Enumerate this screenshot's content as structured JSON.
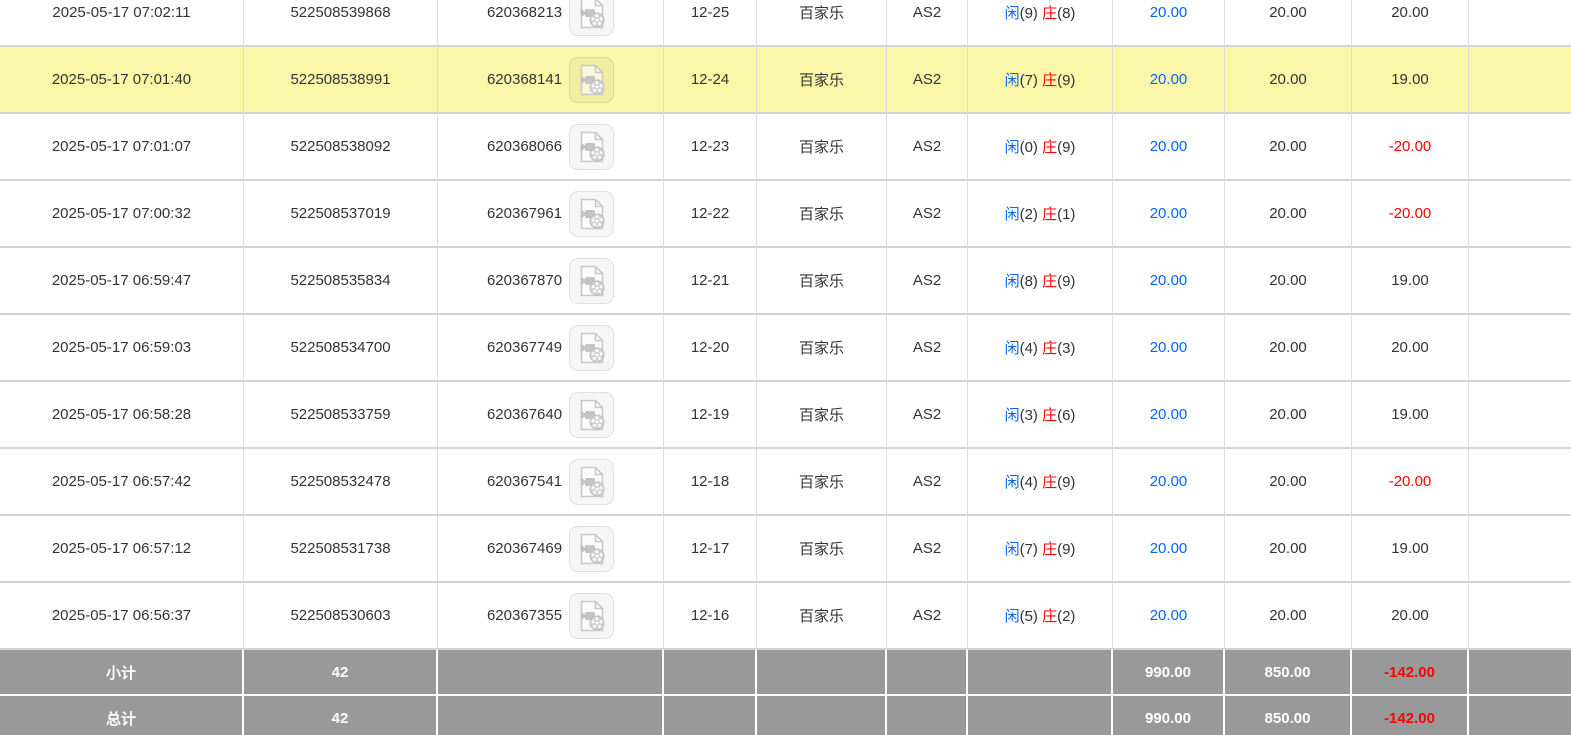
{
  "table": {
    "result_labels": {
      "player": "闲",
      "banker": "庄"
    },
    "colors": {
      "highlight_row": "#FAF7A8",
      "summary_bg": "#999999",
      "link_blue": "#0066FF",
      "negative_red": "#FF0000",
      "text": "#333333"
    },
    "rows": [
      {
        "time": "2025-05-17 07:02:11",
        "bet_id": "522508539868",
        "game_id": "620368213",
        "round": "12-25",
        "game_type": "百家乐",
        "table_name": "AS2",
        "player_score": "9",
        "banker_score": "8",
        "valid_bet": "20.00",
        "bet_amount": "20.00",
        "win_loss": "20.00",
        "highlighted": false
      },
      {
        "time": "2025-05-17 07:01:40",
        "bet_id": "522508538991",
        "game_id": "620368141",
        "round": "12-24",
        "game_type": "百家乐",
        "table_name": "AS2",
        "player_score": "7",
        "banker_score": "9",
        "valid_bet": "20.00",
        "bet_amount": "20.00",
        "win_loss": "19.00",
        "highlighted": true
      },
      {
        "time": "2025-05-17 07:01:07",
        "bet_id": "522508538092",
        "game_id": "620368066",
        "round": "12-23",
        "game_type": "百家乐",
        "table_name": "AS2",
        "player_score": "0",
        "banker_score": "9",
        "valid_bet": "20.00",
        "bet_amount": "20.00",
        "win_loss": "-20.00",
        "highlighted": false
      },
      {
        "time": "2025-05-17 07:00:32",
        "bet_id": "522508537019",
        "game_id": "620367961",
        "round": "12-22",
        "game_type": "百家乐",
        "table_name": "AS2",
        "player_score": "2",
        "banker_score": "1",
        "valid_bet": "20.00",
        "bet_amount": "20.00",
        "win_loss": "-20.00",
        "highlighted": false
      },
      {
        "time": "2025-05-17 06:59:47",
        "bet_id": "522508535834",
        "game_id": "620367870",
        "round": "12-21",
        "game_type": "百家乐",
        "table_name": "AS2",
        "player_score": "8",
        "banker_score": "9",
        "valid_bet": "20.00",
        "bet_amount": "20.00",
        "win_loss": "19.00",
        "highlighted": false
      },
      {
        "time": "2025-05-17 06:59:03",
        "bet_id": "522508534700",
        "game_id": "620367749",
        "round": "12-20",
        "game_type": "百家乐",
        "table_name": "AS2",
        "player_score": "4",
        "banker_score": "3",
        "valid_bet": "20.00",
        "bet_amount": "20.00",
        "win_loss": "20.00",
        "highlighted": false
      },
      {
        "time": "2025-05-17 06:58:28",
        "bet_id": "522508533759",
        "game_id": "620367640",
        "round": "12-19",
        "game_type": "百家乐",
        "table_name": "AS2",
        "player_score": "3",
        "banker_score": "6",
        "valid_bet": "20.00",
        "bet_amount": "20.00",
        "win_loss": "19.00",
        "highlighted": false
      },
      {
        "time": "2025-05-17 06:57:42",
        "bet_id": "522508532478",
        "game_id": "620367541",
        "round": "12-18",
        "game_type": "百家乐",
        "table_name": "AS2",
        "player_score": "4",
        "banker_score": "9",
        "valid_bet": "20.00",
        "bet_amount": "20.00",
        "win_loss": "-20.00",
        "highlighted": false
      },
      {
        "time": "2025-05-17 06:57:12",
        "bet_id": "522508531738",
        "game_id": "620367469",
        "round": "12-17",
        "game_type": "百家乐",
        "table_name": "AS2",
        "player_score": "7",
        "banker_score": "9",
        "valid_bet": "20.00",
        "bet_amount": "20.00",
        "win_loss": "19.00",
        "highlighted": false
      },
      {
        "time": "2025-05-17 06:56:37",
        "bet_id": "522508530603",
        "game_id": "620367355",
        "round": "12-16",
        "game_type": "百家乐",
        "table_name": "AS2",
        "player_score": "5",
        "banker_score": "2",
        "valid_bet": "20.00",
        "bet_amount": "20.00",
        "win_loss": "20.00",
        "highlighted": false
      }
    ],
    "summary_rows": [
      {
        "label": "小计",
        "count": "42",
        "valid_bet": "990.00",
        "bet_amount": "850.00",
        "win_loss": "-142.00"
      },
      {
        "label": "总计",
        "count": "42",
        "valid_bet": "990.00",
        "bet_amount": "850.00",
        "win_loss": "-142.00"
      }
    ]
  }
}
